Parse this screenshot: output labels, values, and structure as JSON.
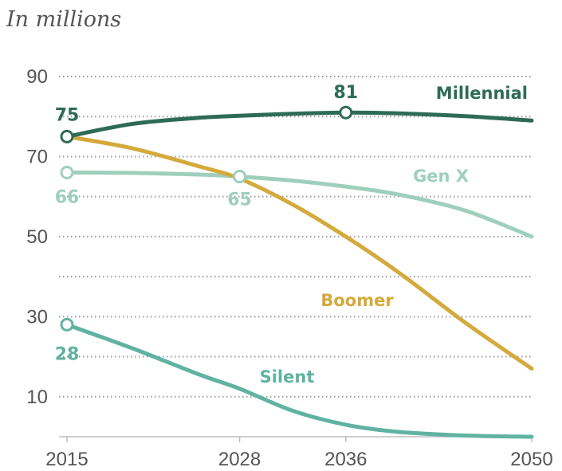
{
  "chart_data": {
    "type": "line",
    "subtitle": "In millions",
    "x": [
      2015,
      2028,
      2036,
      2050
    ],
    "x_tick_labels": [
      "2015",
      "2028",
      "2036",
      "2050"
    ],
    "y_tick_labels": [
      "90",
      "70",
      "50",
      "30",
      "10"
    ],
    "ylim": [
      0,
      90
    ],
    "xlim": [
      2015,
      2050
    ],
    "grid": true,
    "series": [
      {
        "name": "Millennial",
        "color": "#2e6b57",
        "points": [
          [
            2015,
            75
          ],
          [
            2020,
            78.2
          ],
          [
            2025,
            79.7
          ],
          [
            2028,
            80.2
          ],
          [
            2032,
            80.7
          ],
          [
            2036,
            81
          ],
          [
            2040,
            80.8
          ],
          [
            2045,
            80.1
          ],
          [
            2050,
            79
          ]
        ],
        "callouts": [
          {
            "x": 2015,
            "y": 75,
            "label": "75"
          },
          {
            "x": 2036,
            "y": 81,
            "label": "81"
          }
        ]
      },
      {
        "name": "Gen X",
        "color": "#9ecfbd",
        "points": [
          [
            2015,
            66
          ],
          [
            2020,
            65.9
          ],
          [
            2025,
            65.5
          ],
          [
            2028,
            65
          ],
          [
            2032,
            64
          ],
          [
            2036,
            62.5
          ],
          [
            2040,
            60.5
          ],
          [
            2045,
            56.5
          ],
          [
            2050,
            50
          ]
        ],
        "callouts": [
          {
            "x": 2015,
            "y": 66,
            "label": "66"
          },
          {
            "x": 2028,
            "y": 65,
            "label": "65"
          }
        ]
      },
      {
        "name": "Boomer",
        "color": "#d4aa3c",
        "points": [
          [
            2015,
            75
          ],
          [
            2020,
            72
          ],
          [
            2025,
            67.5
          ],
          [
            2028,
            64.5
          ],
          [
            2032,
            58
          ],
          [
            2036,
            50
          ],
          [
            2040,
            41
          ],
          [
            2045,
            28.5
          ],
          [
            2050,
            17
          ]
        ],
        "callouts": []
      },
      {
        "name": "Silent",
        "color": "#5fb3a0",
        "points": [
          [
            2015,
            28
          ],
          [
            2020,
            22
          ],
          [
            2025,
            15.5
          ],
          [
            2028,
            12
          ],
          [
            2032,
            6.5
          ],
          [
            2036,
            3
          ],
          [
            2040,
            1.2
          ],
          [
            2045,
            0.3
          ],
          [
            2050,
            0
          ]
        ],
        "callouts": [
          {
            "x": 2015,
            "y": 28,
            "label": "28"
          }
        ]
      }
    ]
  }
}
